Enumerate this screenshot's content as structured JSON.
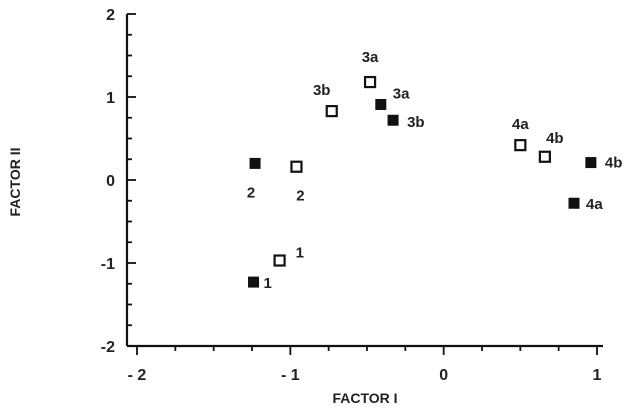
{
  "chart_data": {
    "type": "scatter",
    "title": "",
    "xlabel": "FACTOR I",
    "ylabel": "FACTOR II",
    "xlim": [
      -2,
      1
    ],
    "ylim": [
      -2,
      2
    ],
    "x_ticks": [
      -2,
      -1,
      0,
      1
    ],
    "x_tick_labels": [
      "- 2",
      "- 1",
      "0",
      "1"
    ],
    "y_ticks": [
      -2,
      -1,
      0,
      1,
      2
    ],
    "y_tick_labels": [
      "-2",
      "-1",
      "0",
      "1",
      "2"
    ],
    "grid": false,
    "series": [
      {
        "marker": "filled-square",
        "color": "#111111",
        "points": [
          {
            "x": -1.24,
            "y": -1.23,
            "label": "1"
          },
          {
            "x": -1.23,
            "y": 0.2,
            "label": "2"
          },
          {
            "x": -0.41,
            "y": 0.91,
            "label": "3a"
          },
          {
            "x": -0.33,
            "y": 0.72,
            "label": "3b"
          },
          {
            "x": 0.85,
            "y": -0.28,
            "label": "4a"
          },
          {
            "x": 0.96,
            "y": 0.21,
            "label": "4b"
          }
        ]
      },
      {
        "marker": "open-square",
        "color": "#111111",
        "points": [
          {
            "x": -1.07,
            "y": -0.97,
            "label": "1"
          },
          {
            "x": -0.96,
            "y": 0.16,
            "label": "2"
          },
          {
            "x": -0.48,
            "y": 1.18,
            "label": "3a"
          },
          {
            "x": -0.73,
            "y": 0.83,
            "label": "3b"
          },
          {
            "x": 0.5,
            "y": 0.42,
            "label": "4a"
          },
          {
            "x": 0.66,
            "y": 0.28,
            "label": "4b"
          }
        ]
      }
    ]
  }
}
